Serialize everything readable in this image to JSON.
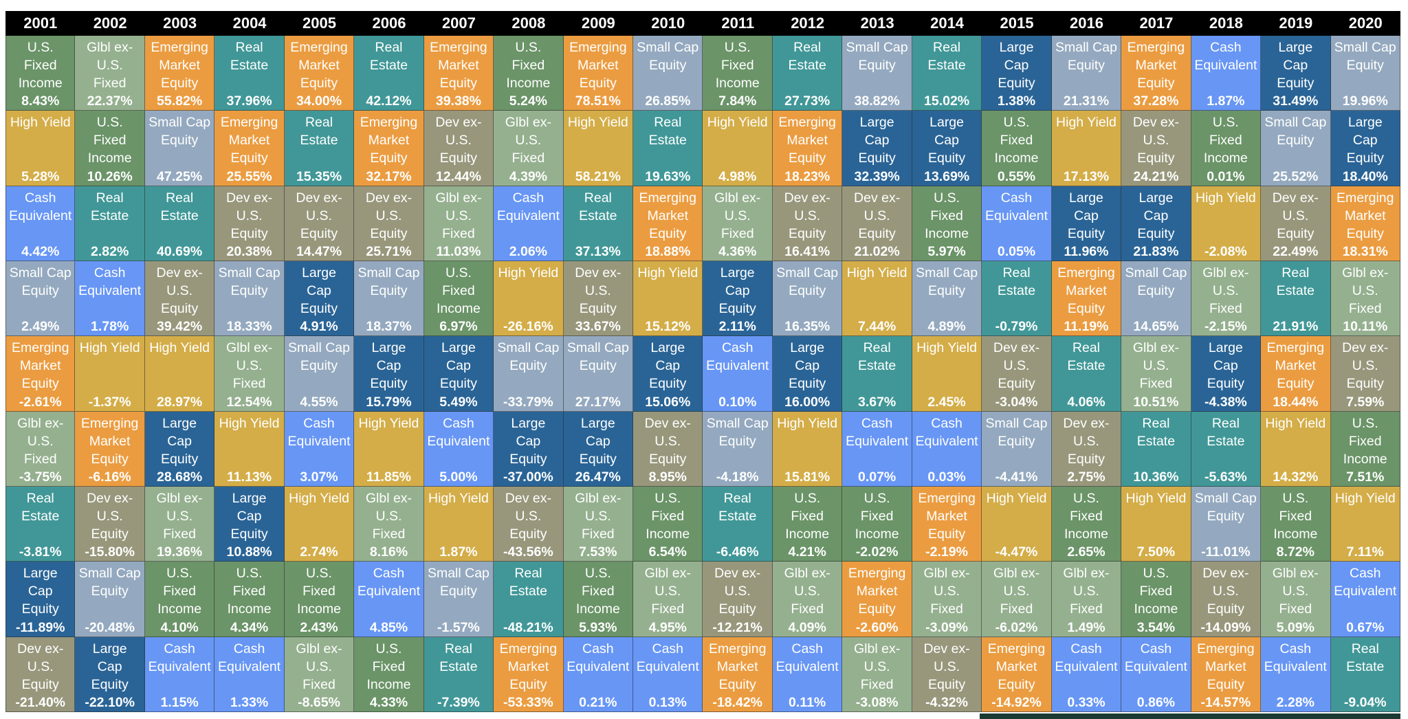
{
  "chart_data": {
    "type": "table",
    "title": "",
    "description": "Periodic table of annual asset class returns, 2001-2020, ranked highest (top) to lowest (bottom) within each year",
    "years": [
      "2001",
      "2002",
      "2003",
      "2004",
      "2005",
      "2006",
      "2007",
      "2008",
      "2009",
      "2010",
      "2011",
      "2012",
      "2013",
      "2014",
      "2015",
      "2016",
      "2017",
      "2018",
      "2019",
      "2020"
    ],
    "asset_classes": {
      "LC": {
        "name": "Large Cap Equity",
        "label": "Large\nCap\nEquity",
        "color": "#2a6496"
      },
      "SC": {
        "name": "Small Cap Equity",
        "label": "Small Cap\nEquity",
        "color": "#94a9bf"
      },
      "EM": {
        "name": "Emerging Market Equity",
        "label": "Emerging\nMarket\nEquity",
        "color": "#eb9c40"
      },
      "CE": {
        "name": "Cash Equivalent",
        "label": "Cash\nEquivalent",
        "color": "#6796f5"
      },
      "RE": {
        "name": "Real Estate",
        "label": "Real\nEstate",
        "color": "#419797"
      },
      "FI": {
        "name": "U.S. Fixed Income",
        "label": "U.S.\nFixed\nIncome",
        "color": "#6b9468"
      },
      "GF": {
        "name": "Glbl ex-U.S. Fixed",
        "label": "Glbl ex-\nU.S.\nFixed",
        "color": "#95b08f"
      },
      "HY": {
        "name": "High Yield",
        "label": "High Yield",
        "color": "#d4ad48"
      },
      "DE": {
        "name": "Dev ex-U.S. Equity",
        "label": "Dev ex-\nU.S.\nEquity",
        "color": "#98977c"
      }
    },
    "columns": [
      {
        "year": "2001",
        "cells": [
          [
            "FI",
            "8.43%"
          ],
          [
            "HY",
            "5.28%"
          ],
          [
            "CE",
            "4.42%"
          ],
          [
            "SC",
            "2.49%"
          ],
          [
            "EM",
            "-2.61%"
          ],
          [
            "GF",
            "-3.75%"
          ],
          [
            "RE",
            "-3.81%"
          ],
          [
            "LC",
            "-11.89%"
          ],
          [
            "DE",
            "-21.40%"
          ]
        ]
      },
      {
        "year": "2002",
        "cells": [
          [
            "GF",
            "22.37%"
          ],
          [
            "FI",
            "10.26%"
          ],
          [
            "RE",
            "2.82%"
          ],
          [
            "CE",
            "1.78%"
          ],
          [
            "HY",
            "-1.37%"
          ],
          [
            "EM",
            "-6.16%"
          ],
          [
            "DE",
            "-15.80%"
          ],
          [
            "SC",
            "-20.48%"
          ],
          [
            "LC",
            "-22.10%"
          ]
        ]
      },
      {
        "year": "2003",
        "cells": [
          [
            "EM",
            "55.82%"
          ],
          [
            "SC",
            "47.25%"
          ],
          [
            "RE",
            "40.69%"
          ],
          [
            "DE",
            "39.42%"
          ],
          [
            "HY",
            "28.97%"
          ],
          [
            "LC",
            "28.68%"
          ],
          [
            "GF",
            "19.36%"
          ],
          [
            "FI",
            "4.10%"
          ],
          [
            "CE",
            "1.15%"
          ]
        ]
      },
      {
        "year": "2004",
        "cells": [
          [
            "RE",
            "37.96%"
          ],
          [
            "EM",
            "25.55%"
          ],
          [
            "DE",
            "20.38%"
          ],
          [
            "SC",
            "18.33%"
          ],
          [
            "GF",
            "12.54%"
          ],
          [
            "HY",
            "11.13%"
          ],
          [
            "LC",
            "10.88%"
          ],
          [
            "FI",
            "4.34%"
          ],
          [
            "CE",
            "1.33%"
          ]
        ]
      },
      {
        "year": "2005",
        "cells": [
          [
            "EM",
            "34.00%"
          ],
          [
            "RE",
            "15.35%"
          ],
          [
            "DE",
            "14.47%"
          ],
          [
            "LC",
            "4.91%"
          ],
          [
            "SC",
            "4.55%"
          ],
          [
            "CE",
            "3.07%"
          ],
          [
            "HY",
            "2.74%"
          ],
          [
            "FI",
            "2.43%"
          ],
          [
            "GF",
            "-8.65%"
          ]
        ]
      },
      {
        "year": "2006",
        "cells": [
          [
            "RE",
            "42.12%"
          ],
          [
            "EM",
            "32.17%"
          ],
          [
            "DE",
            "25.71%"
          ],
          [
            "SC",
            "18.37%"
          ],
          [
            "LC",
            "15.79%"
          ],
          [
            "HY",
            "11.85%"
          ],
          [
            "GF",
            "8.16%"
          ],
          [
            "CE",
            "4.85%"
          ],
          [
            "FI",
            "4.33%"
          ]
        ]
      },
      {
        "year": "2007",
        "cells": [
          [
            "EM",
            "39.38%"
          ],
          [
            "DE",
            "12.44%"
          ],
          [
            "GF",
            "11.03%"
          ],
          [
            "FI",
            "6.97%"
          ],
          [
            "LC",
            "5.49%"
          ],
          [
            "CE",
            "5.00%"
          ],
          [
            "HY",
            "1.87%"
          ],
          [
            "SC",
            "-1.57%"
          ],
          [
            "RE",
            "-7.39%"
          ]
        ]
      },
      {
        "year": "2008",
        "cells": [
          [
            "FI",
            "5.24%"
          ],
          [
            "GF",
            "4.39%"
          ],
          [
            "CE",
            "2.06%"
          ],
          [
            "HY",
            "-26.16%"
          ],
          [
            "SC",
            "-33.79%"
          ],
          [
            "LC",
            "-37.00%"
          ],
          [
            "DE",
            "-43.56%"
          ],
          [
            "RE",
            "-48.21%"
          ],
          [
            "EM",
            "-53.33%"
          ]
        ]
      },
      {
        "year": "2009",
        "cells": [
          [
            "EM",
            "78.51%"
          ],
          [
            "HY",
            "58.21%"
          ],
          [
            "RE",
            "37.13%"
          ],
          [
            "DE",
            "33.67%"
          ],
          [
            "SC",
            "27.17%"
          ],
          [
            "LC",
            "26.47%"
          ],
          [
            "GF",
            "7.53%"
          ],
          [
            "FI",
            "5.93%"
          ],
          [
            "CE",
            "0.21%"
          ]
        ]
      },
      {
        "year": "2010",
        "cells": [
          [
            "SC",
            "26.85%"
          ],
          [
            "RE",
            "19.63%"
          ],
          [
            "EM",
            "18.88%"
          ],
          [
            "HY",
            "15.12%"
          ],
          [
            "LC",
            "15.06%"
          ],
          [
            "DE",
            "8.95%"
          ],
          [
            "FI",
            "6.54%"
          ],
          [
            "GF",
            "4.95%"
          ],
          [
            "CE",
            "0.13%"
          ]
        ]
      },
      {
        "year": "2011",
        "cells": [
          [
            "FI",
            "7.84%"
          ],
          [
            "HY",
            "4.98%"
          ],
          [
            "GF",
            "4.36%"
          ],
          [
            "LC",
            "2.11%"
          ],
          [
            "CE",
            "0.10%"
          ],
          [
            "SC",
            "-4.18%"
          ],
          [
            "RE",
            "-6.46%"
          ],
          [
            "DE",
            "-12.21%"
          ],
          [
            "EM",
            "-18.42%"
          ]
        ]
      },
      {
        "year": "2012",
        "cells": [
          [
            "RE",
            "27.73%"
          ],
          [
            "EM",
            "18.23%"
          ],
          [
            "DE",
            "16.41%"
          ],
          [
            "SC",
            "16.35%"
          ],
          [
            "LC",
            "16.00%"
          ],
          [
            "HY",
            "15.81%"
          ],
          [
            "FI",
            "4.21%"
          ],
          [
            "GF",
            "4.09%"
          ],
          [
            "CE",
            "0.11%"
          ]
        ]
      },
      {
        "year": "2013",
        "cells": [
          [
            "SC",
            "38.82%"
          ],
          [
            "LC",
            "32.39%"
          ],
          [
            "DE",
            "21.02%"
          ],
          [
            "HY",
            "7.44%"
          ],
          [
            "RE",
            "3.67%"
          ],
          [
            "CE",
            "0.07%"
          ],
          [
            "FI",
            "-2.02%"
          ],
          [
            "EM",
            "-2.60%"
          ],
          [
            "GF",
            "-3.08%"
          ]
        ]
      },
      {
        "year": "2014",
        "cells": [
          [
            "RE",
            "15.02%"
          ],
          [
            "LC",
            "13.69%"
          ],
          [
            "FI",
            "5.97%"
          ],
          [
            "SC",
            "4.89%"
          ],
          [
            "HY",
            "2.45%"
          ],
          [
            "CE",
            "0.03%"
          ],
          [
            "EM",
            "-2.19%"
          ],
          [
            "GF",
            "-3.09%"
          ],
          [
            "DE",
            "-4.32%"
          ]
        ]
      },
      {
        "year": "2015",
        "cells": [
          [
            "LC",
            "1.38%"
          ],
          [
            "FI",
            "0.55%"
          ],
          [
            "CE",
            "0.05%"
          ],
          [
            "RE",
            "-0.79%"
          ],
          [
            "DE",
            "-3.04%"
          ],
          [
            "SC",
            "-4.41%"
          ],
          [
            "HY",
            "-4.47%"
          ],
          [
            "GF",
            "-6.02%"
          ],
          [
            "EM",
            "-14.92%"
          ]
        ]
      },
      {
        "year": "2016",
        "cells": [
          [
            "SC",
            "21.31%"
          ],
          [
            "HY",
            "17.13%"
          ],
          [
            "LC",
            "11.96%"
          ],
          [
            "EM",
            "11.19%"
          ],
          [
            "RE",
            "4.06%"
          ],
          [
            "DE",
            "2.75%"
          ],
          [
            "FI",
            "2.65%"
          ],
          [
            "GF",
            "1.49%"
          ],
          [
            "CE",
            "0.33%"
          ]
        ]
      },
      {
        "year": "2017",
        "cells": [
          [
            "EM",
            "37.28%"
          ],
          [
            "DE",
            "24.21%"
          ],
          [
            "LC",
            "21.83%"
          ],
          [
            "SC",
            "14.65%"
          ],
          [
            "GF",
            "10.51%"
          ],
          [
            "RE",
            "10.36%"
          ],
          [
            "HY",
            "7.50%"
          ],
          [
            "FI",
            "3.54%"
          ],
          [
            "CE",
            "0.86%"
          ]
        ]
      },
      {
        "year": "2018",
        "cells": [
          [
            "CE",
            "1.87%"
          ],
          [
            "FI",
            "0.01%"
          ],
          [
            "HY",
            "-2.08%"
          ],
          [
            "GF",
            "-2.15%"
          ],
          [
            "LC",
            "-4.38%"
          ],
          [
            "RE",
            "-5.63%"
          ],
          [
            "SC",
            "-11.01%"
          ],
          [
            "DE",
            "-14.09%"
          ],
          [
            "EM",
            "-14.57%"
          ]
        ]
      },
      {
        "year": "2019",
        "cells": [
          [
            "LC",
            "31.49%"
          ],
          [
            "SC",
            "25.52%"
          ],
          [
            "DE",
            "22.49%"
          ],
          [
            "RE",
            "21.91%"
          ],
          [
            "EM",
            "18.44%"
          ],
          [
            "HY",
            "14.32%"
          ],
          [
            "FI",
            "8.72%"
          ],
          [
            "GF",
            "5.09%"
          ],
          [
            "CE",
            "2.28%"
          ]
        ]
      },
      {
        "year": "2020",
        "cells": [
          [
            "SC",
            "19.96%"
          ],
          [
            "LC",
            "18.40%"
          ],
          [
            "EM",
            "18.31%"
          ],
          [
            "GF",
            "10.11%"
          ],
          [
            "DE",
            "7.59%"
          ],
          [
            "FI",
            "7.51%"
          ],
          [
            "HY",
            "7.11%"
          ],
          [
            "CE",
            "0.67%"
          ],
          [
            "RE",
            "-9.04%"
          ]
        ]
      }
    ],
    "layout": {
      "rows": 9,
      "cols": 20,
      "header_bg": "#000000",
      "text_color": "#ffffff"
    }
  }
}
